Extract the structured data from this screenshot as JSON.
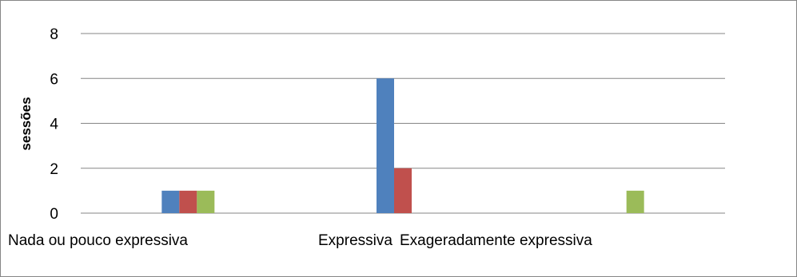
{
  "chart_data": {
    "type": "bar",
    "title": "",
    "xlabel": "",
    "ylabel": "sessões",
    "ylim": [
      0,
      8
    ],
    "yticks": [
      0,
      2,
      4,
      6,
      8
    ],
    "grid": true,
    "legend": "none",
    "categories": [
      "Nada ou pouco expressiva",
      "Expressiva",
      "Exageradamente expressiva"
    ],
    "series": [
      {
        "color": "#4F81BD",
        "values": [
          1,
          6,
          0
        ]
      },
      {
        "color": "#C0504D",
        "values": [
          1,
          2,
          0
        ]
      },
      {
        "color": "#9BBB59",
        "values": [
          1,
          0,
          1
        ]
      }
    ]
  }
}
